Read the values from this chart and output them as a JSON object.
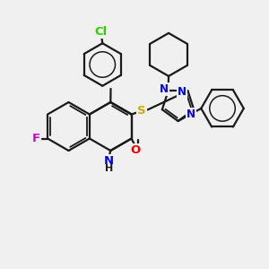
{
  "background_color": "#f0f0f0",
  "bond_color": "#1a1a1a",
  "atom_colors": {
    "Cl": "#33cc00",
    "F": "#cc00cc",
    "S": "#ccaa00",
    "N": "#0000ee",
    "O": "#ee0000",
    "H": "#1a1a1a",
    "C": "#1a1a1a"
  },
  "figsize": [
    3.0,
    3.0
  ],
  "dpi": 100,
  "lw": 1.6,
  "lw_double": 1.3
}
